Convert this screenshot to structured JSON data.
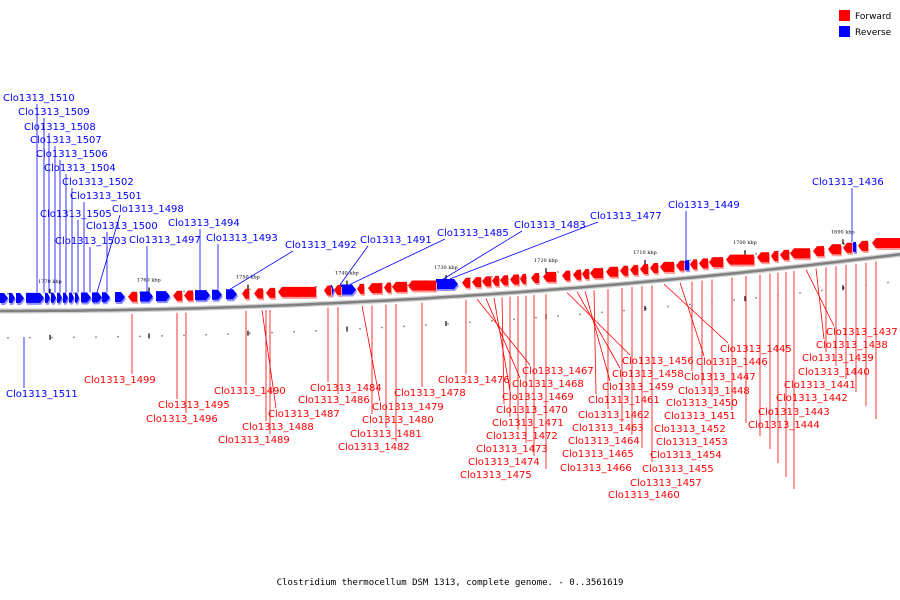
{
  "caption": "Clostridium thermocellum DSM 1313, complete genome. - 0..3561619",
  "legend": [
    {
      "label": "Forward",
      "color": "#ff0000"
    },
    {
      "label": "Reverse",
      "color": "#0000ff"
    }
  ],
  "colors": {
    "forward": "#ff0000",
    "reverse": "#0000ff",
    "backbone": "#808080"
  },
  "kbp_labels": [
    "1770 kbp",
    "1760 kbp",
    "1750 kbp",
    "1740 kbp",
    "1730 kbp",
    "1720 kbp",
    "1710 kbp",
    "1700 kbp",
    "1690 kbp"
  ],
  "reverse_genes": [
    "Clo1313_1510",
    "Clo1313_1509",
    "Clo1313_1508",
    "Clo1313_1507",
    "Clo1313_1506",
    "Clo1313_1504",
    "Clo1313_1502",
    "Clo1313_1501",
    "Clo1313_1498",
    "Clo1313_1505",
    "Clo1313_1500",
    "Clo1313_1503",
    "Clo1313_1497",
    "Clo1313_1494",
    "Clo1313_1493",
    "Clo1313_1492",
    "Clo1313_1491",
    "Clo1313_1485",
    "Clo1313_1483",
    "Clo1313_1477",
    "Clo1313_1449",
    "Clo1313_1436",
    "Clo1313_1511"
  ],
  "forward_genes": [
    "Clo1313_1499",
    "Clo1313_1495",
    "Clo1313_1496",
    "Clo1313_1490",
    "Clo1313_1487",
    "Clo1313_1488",
    "Clo1313_1489",
    "Clo1313_1484",
    "Clo1313_1486",
    "Clo1313_1479",
    "Clo1313_1480",
    "Clo1313_1481",
    "Clo1313_1482",
    "Clo1313_1478",
    "Clo1313_1476",
    "Clo1313_1467",
    "Clo1313_1468",
    "Clo1313_1469",
    "Clo1313_1470",
    "Clo1313_1471",
    "Clo1313_1472",
    "Clo1313_1473",
    "Clo1313_1474",
    "Clo1313_1475",
    "Clo1313_1456",
    "Clo1313_1458",
    "Clo1313_1459",
    "Clo1313_1461",
    "Clo1313_1462",
    "Clo1313_1463",
    "Clo1313_1464",
    "Clo1313_1465",
    "Clo1313_1466",
    "Clo1313_1445",
    "Clo1313_1446",
    "Clo1313_1447",
    "Clo1313_1448",
    "Clo1313_1450",
    "Clo1313_1451",
    "Clo1313_1452",
    "Clo1313_1453",
    "Clo1313_1454",
    "Clo1313_1455",
    "Clo1313_1457",
    "Clo1313_1460",
    "Clo1313_1437",
    "Clo1313_1438",
    "Clo1313_1439",
    "Clo1313_1440",
    "Clo1313_1441",
    "Clo1313_1442",
    "Clo1313_1443",
    "Clo1313_1444"
  ]
}
